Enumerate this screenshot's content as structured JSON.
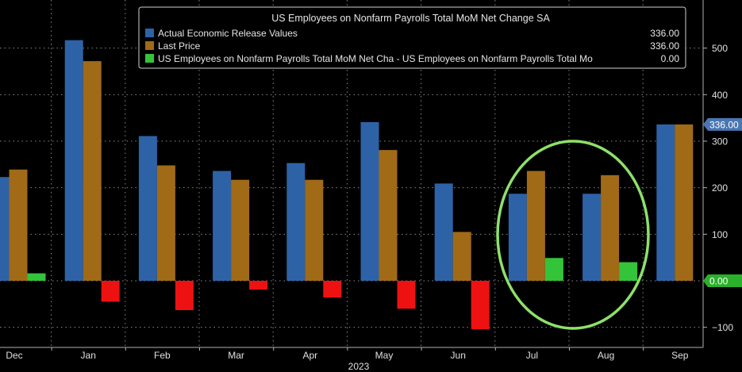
{
  "chart_data": {
    "type": "bar",
    "legend_title": "US Employees on Nonfarm Payrolls Total MoM Net Change SA",
    "legend_placement": "top-center",
    "categories": [
      "Dec",
      "Jan",
      "Feb",
      "Mar",
      "Apr",
      "May",
      "Jun",
      "Jul",
      "Aug",
      "Sep"
    ],
    "year_label": "2023",
    "ylim": [
      -130,
      600
    ],
    "yticks": [
      -100,
      0,
      100,
      200,
      300,
      400,
      500
    ],
    "grid": true,
    "series": [
      {
        "name": "Actual Economic Release Values",
        "legend_value": "336.00",
        "color": "#2e62a6",
        "values": [
          223,
          517,
          311,
          236,
          253,
          341,
          209,
          187,
          187,
          336
        ]
      },
      {
        "name": "Last Price",
        "legend_value": "336.00",
        "color": "#a06a17",
        "values": [
          239,
          472,
          248,
          217,
          217,
          281,
          105,
          236,
          227,
          336
        ]
      },
      {
        "name": "US Employees on Nonfarm Payrolls Total MoM Net Cha - US Employees on Nonfarm Payrolls Total Mo",
        "legend_value": "0.00",
        "color": "#33c43a",
        "negative_color": "#ee1111",
        "values": [
          16,
          -45,
          -63,
          -19,
          -36,
          -60,
          -104,
          49,
          40,
          0
        ]
      }
    ],
    "last_value_labels": [
      {
        "text": "336.00",
        "value": 336,
        "color": "#4a76b2"
      },
      {
        "text": "0.00",
        "value": 0,
        "color": "#2bb02b"
      }
    ],
    "annotation": {
      "type": "ellipse",
      "color": "#8ee06a",
      "around_categories": [
        "Jul",
        "Aug"
      ]
    }
  }
}
